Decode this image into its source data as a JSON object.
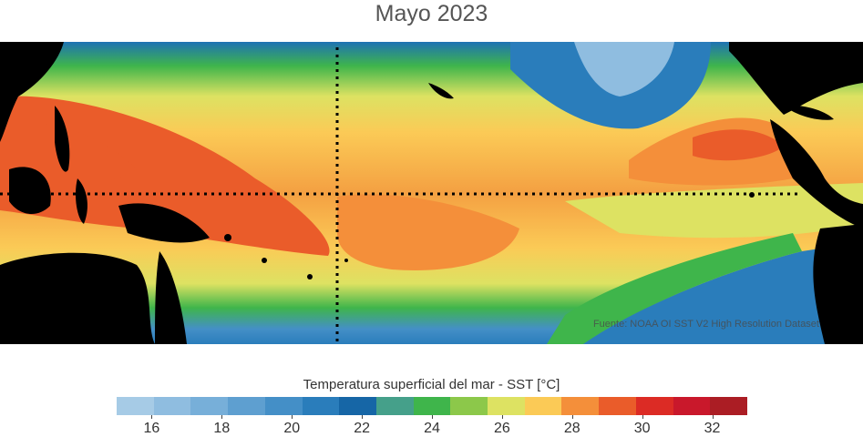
{
  "title": "Mayo 2023",
  "credit": "Fuente: NOAA OI SST V2 High Resolution Dataset",
  "legend": {
    "title": "Temperatura superficial del mar - SST  [°C]",
    "colors": [
      "#a6cbe6",
      "#8fbde0",
      "#77afd9",
      "#5e9fd0",
      "#448fc7",
      "#2a7dbb",
      "#1666a6",
      "#45a08a",
      "#3fb54b",
      "#8cc84a",
      "#dde262",
      "#fbca56",
      "#f48f3a",
      "#ea5c2a",
      "#dc2b25",
      "#c9182b",
      "#ab1d24"
    ],
    "ticks": [
      {
        "value": 16,
        "label": "16"
      },
      {
        "value": 18,
        "label": "18"
      },
      {
        "value": 20,
        "label": "20"
      },
      {
        "value": 22,
        "label": "22"
      },
      {
        "value": 24,
        "label": "24"
      },
      {
        "value": 26,
        "label": "26"
      },
      {
        "value": 28,
        "label": "28"
      },
      {
        "value": 30,
        "label": "30"
      },
      {
        "value": 32,
        "label": "32"
      }
    ],
    "min": 15,
    "max": 33
  }
}
